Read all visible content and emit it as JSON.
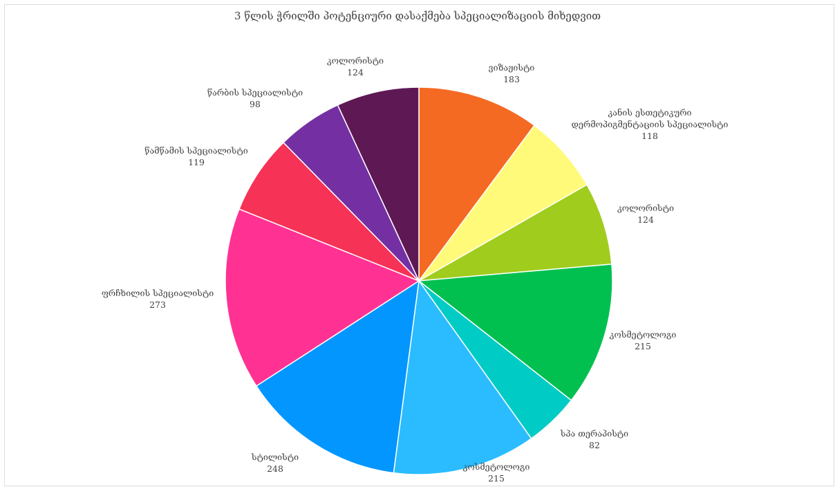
{
  "chart_data": {
    "type": "pie",
    "title": "3 წლის ჭრილში პოტენციური დასაქმება სპეციალიზაციის მიხედვით",
    "slices": [
      {
        "label": "ვიზაჟისტი",
        "value": 183,
        "color": "#F46A22"
      },
      {
        "label": "კანის ესთეტიკური დერმოპიგმენტაციის სპეციალისტი",
        "value": 118,
        "color": "#FFFA7A"
      },
      {
        "label": "კოლორისტი",
        "value": 124,
        "color": "#A0CC1E"
      },
      {
        "label": "კოსმეტოლოგი",
        "value": 215,
        "color": "#02C050"
      },
      {
        "label": "სპა თერაპისტი",
        "value": 82,
        "color": "#00CCC5"
      },
      {
        "label": "კოსმეტოლოგი",
        "value": 215,
        "color": "#2BBCFF"
      },
      {
        "label": "სტილისტი",
        "value": 248,
        "color": "#0396FF"
      },
      {
        "label": "ფრჩხილის სპეციალისტი",
        "value": 273,
        "color": "#FF3293"
      },
      {
        "label": "წამწამის სპეციალისტი",
        "value": 119,
        "color": "#F63257"
      },
      {
        "label": "წარბის სპეციალისტი",
        "value": 98,
        "color": "#7430A3"
      },
      {
        "label": "კოლორისტი",
        "value": 124,
        "color": "#5E1854"
      }
    ],
    "legend": "none"
  }
}
